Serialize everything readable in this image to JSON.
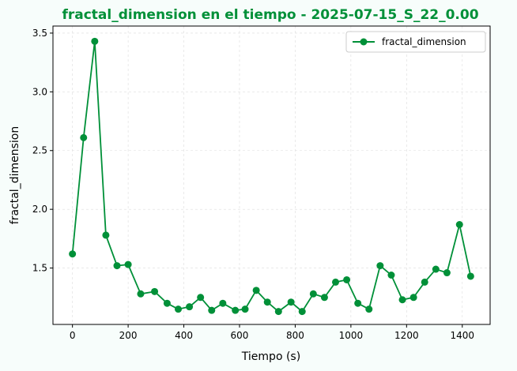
{
  "colors": {
    "accent": "#009038",
    "page_background": "#f7fdfb",
    "plot_background": "#ffffff",
    "grid": "#dddddd"
  },
  "chart_data": {
    "type": "line",
    "title": "fractal_dimension en el tiempo - 2025-07-15_S_22_0.00",
    "xlabel": "Tiempo (s)",
    "ylabel": "fractal_dimension",
    "xlim": [
      -70,
      1500
    ],
    "ylim": [
      1.02,
      3.56
    ],
    "xticks": [
      0,
      200,
      400,
      600,
      800,
      1000,
      1200,
      1400
    ],
    "xtick_labels": [
      "0",
      "200",
      "400",
      "600",
      "800",
      "1000",
      "1200",
      "1400"
    ],
    "yticks": [
      1.5,
      2.0,
      2.5,
      3.0,
      3.5
    ],
    "ytick_labels": [
      "1.5",
      "2.0",
      "2.5",
      "3.0",
      "3.5"
    ],
    "grid": true,
    "legend_position": "top-right",
    "series": [
      {
        "name": "fractal_dimension",
        "color": "#009038",
        "marker": "circle",
        "x": [
          0,
          40,
          80,
          120,
          160,
          200,
          245,
          295,
          340,
          380,
          420,
          460,
          500,
          540,
          585,
          620,
          660,
          700,
          740,
          785,
          825,
          865,
          905,
          945,
          985,
          1025,
          1065,
          1105,
          1145,
          1185,
          1225,
          1265,
          1305,
          1345,
          1390,
          1430
        ],
        "values": [
          1.62,
          2.61,
          3.43,
          1.78,
          1.52,
          1.53,
          1.28,
          1.3,
          1.2,
          1.15,
          1.17,
          1.25,
          1.14,
          1.2,
          1.14,
          1.15,
          1.31,
          1.21,
          1.13,
          1.21,
          1.13,
          1.28,
          1.25,
          1.38,
          1.4,
          1.2,
          1.15,
          1.52,
          1.44,
          1.23,
          1.25,
          1.38,
          1.49,
          1.46,
          1.87,
          1.43
        ]
      }
    ]
  }
}
